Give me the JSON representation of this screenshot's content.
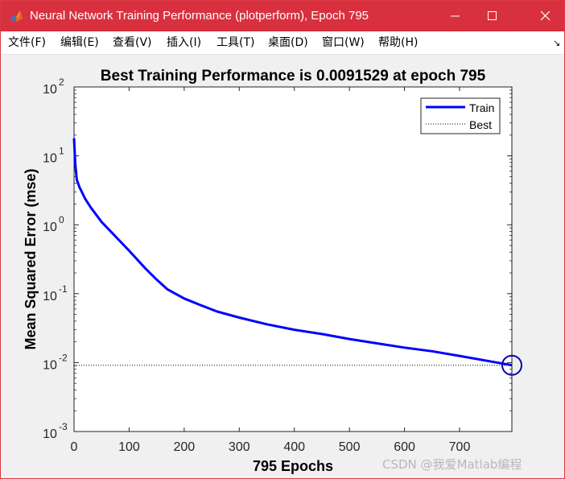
{
  "window": {
    "title": "Neural Network Training Performance (plotperform), Epoch 795",
    "icon": "matlab-icon"
  },
  "menu": [
    {
      "label": "文件(F)"
    },
    {
      "label": "编辑(E)"
    },
    {
      "label": "查看(V)"
    },
    {
      "label": "插入(I)"
    },
    {
      "label": "工具(T)"
    },
    {
      "label": "桌面(D)"
    },
    {
      "label": "窗口(W)"
    },
    {
      "label": "帮助(H)"
    }
  ],
  "menu_overflow": "↘",
  "colors": {
    "titlebar": "#d9303f",
    "train": "#0000ff",
    "best": "#000000",
    "plot_bg": "#ffffff",
    "figure_bg": "#f0f0f0"
  },
  "watermark": "CSDN @我爱Matlab编程",
  "chart_data": {
    "type": "line",
    "title": "Best Training Performance is 0.0091529 at epoch 795",
    "xlabel": "795 Epochs",
    "ylabel": "Mean Squared Error  (mse)",
    "xlim": [
      0,
      795
    ],
    "ylim": [
      0.001,
      100
    ],
    "yscale": "log",
    "xticks": [
      0,
      100,
      200,
      300,
      400,
      500,
      600,
      700
    ],
    "xtick_labels": [
      "0",
      "100",
      "200",
      "300",
      "400",
      "500",
      "600",
      "700"
    ],
    "yticks": [
      0.001,
      0.01,
      0.1,
      1,
      10,
      100
    ],
    "ytick_labels": [
      {
        "base": "10",
        "exp": "-3"
      },
      {
        "base": "10",
        "exp": "-2"
      },
      {
        "base": "10",
        "exp": "-1"
      },
      {
        "base": "10",
        "exp": "0"
      },
      {
        "base": "10",
        "exp": "1"
      },
      {
        "base": "10",
        "exp": "2"
      }
    ],
    "legend": {
      "position": "top-right",
      "entries": [
        "Train",
        "Best"
      ]
    },
    "series": [
      {
        "name": "Train",
        "style": "solid",
        "x": [
          0,
          2,
          5,
          10,
          20,
          30,
          50,
          70,
          100,
          130,
          150,
          170,
          200,
          230,
          260,
          300,
          350,
          400,
          450,
          500,
          550,
          600,
          650,
          700,
          750,
          795
        ],
        "y": [
          18.0,
          8.0,
          4.5,
          3.5,
          2.4,
          1.8,
          1.1,
          0.75,
          0.42,
          0.23,
          0.16,
          0.115,
          0.085,
          0.068,
          0.055,
          0.045,
          0.036,
          0.03,
          0.026,
          0.022,
          0.019,
          0.0165,
          0.0146,
          0.0125,
          0.0106,
          0.0091529
        ]
      },
      {
        "name": "Best",
        "style": "dotted",
        "y_value": 0.0091529
      }
    ],
    "best_point": {
      "x": 795,
      "y": 0.0091529,
      "marker": "circle"
    },
    "grid": false
  }
}
